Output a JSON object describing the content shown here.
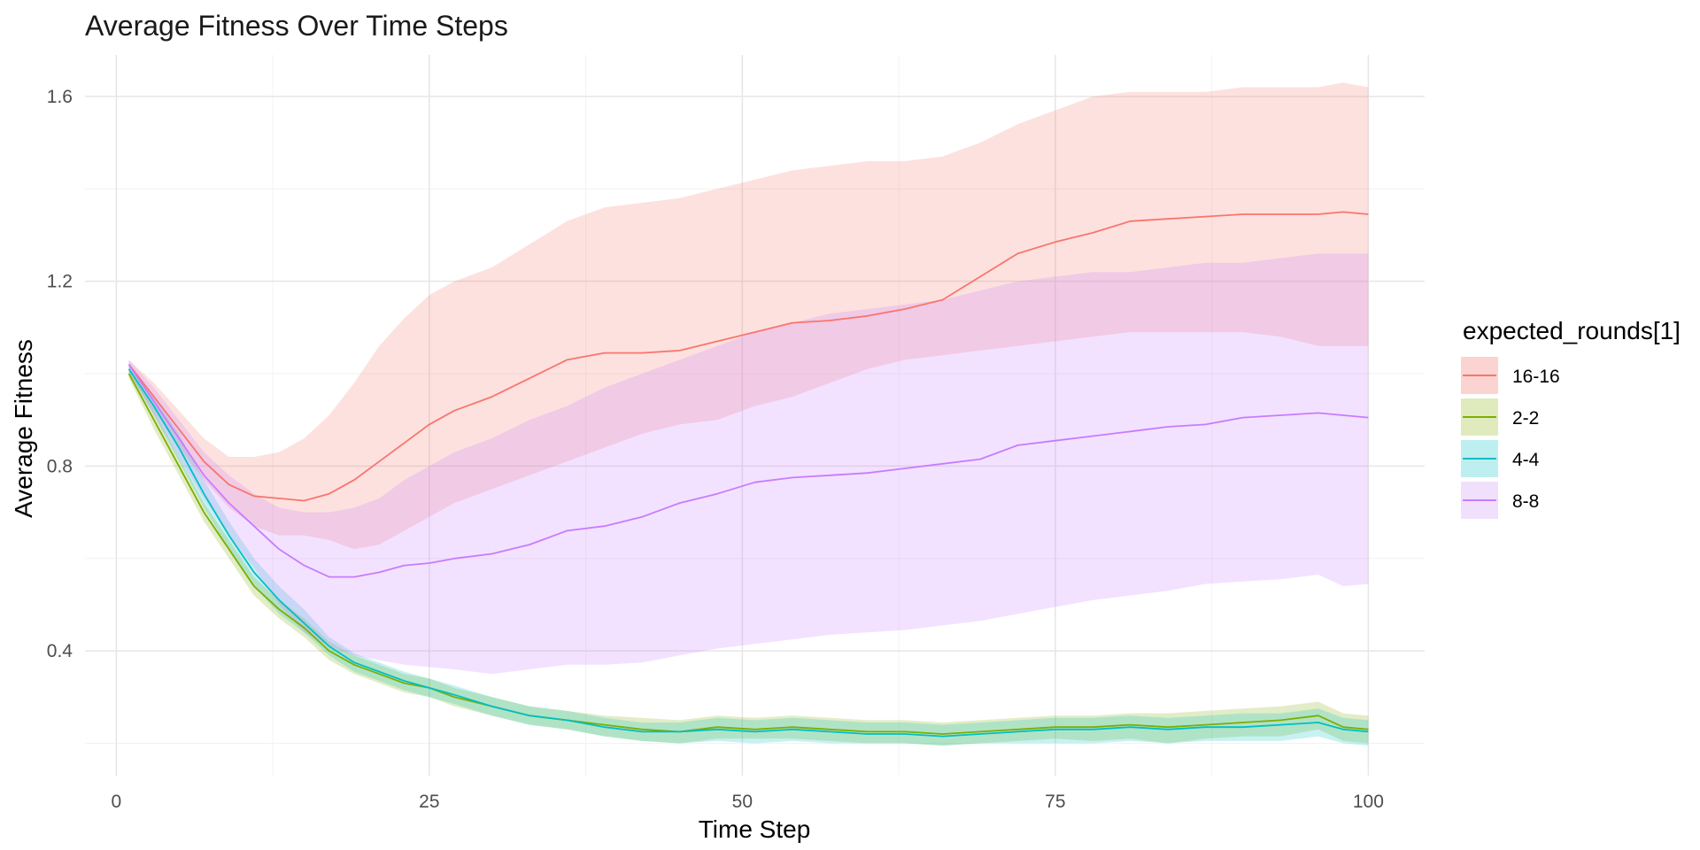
{
  "chart_data": {
    "type": "line",
    "title": "Average Fitness Over Time Steps",
    "xlabel": "Time Step",
    "ylabel": "Average Fitness",
    "xlim": [
      -2.5,
      104.5
    ],
    "ylim": [
      0.13,
      1.69
    ],
    "x_ticks": [
      0,
      25,
      50,
      75,
      100
    ],
    "x_tick_labels": [
      "0",
      "25",
      "50",
      "75",
      "100"
    ],
    "y_ticks": [
      0.4,
      0.8,
      1.2,
      1.6
    ],
    "y_tick_labels": [
      "0.4",
      "0.8",
      "1.2",
      "1.6"
    ],
    "grid": true,
    "legend": {
      "title": "expected_rounds[1]",
      "position": "right"
    },
    "band": "ribbon (shaded interval) around each series",
    "x_keys": [
      1,
      3,
      5,
      7,
      9,
      11,
      13,
      15,
      17,
      19,
      21,
      23,
      25,
      27,
      30,
      33,
      36,
      39,
      42,
      45,
      48,
      51,
      54,
      57,
      60,
      63,
      66,
      69,
      72,
      75,
      78,
      81,
      84,
      87,
      90,
      93,
      96,
      98,
      100
    ],
    "series": [
      {
        "name": "16-16",
        "line_color": "#F8766D",
        "fill_color": "#FBD3D1",
        "values": [
          1.02,
          0.95,
          0.88,
          0.81,
          0.76,
          0.735,
          0.73,
          0.725,
          0.74,
          0.77,
          0.81,
          0.85,
          0.89,
          0.92,
          0.95,
          0.99,
          1.03,
          1.045,
          1.045,
          1.05,
          1.07,
          1.09,
          1.11,
          1.115,
          1.125,
          1.14,
          1.16,
          1.21,
          1.26,
          1.285,
          1.305,
          1.33,
          1.335,
          1.34,
          1.345,
          1.345,
          1.345,
          1.35,
          1.345
        ],
        "lower": [
          1.0,
          0.92,
          0.84,
          0.77,
          0.71,
          0.67,
          0.65,
          0.65,
          0.64,
          0.62,
          0.63,
          0.66,
          0.69,
          0.72,
          0.75,
          0.78,
          0.81,
          0.84,
          0.87,
          0.89,
          0.9,
          0.93,
          0.95,
          0.98,
          1.01,
          1.03,
          1.04,
          1.05,
          1.06,
          1.07,
          1.08,
          1.09,
          1.09,
          1.09,
          1.09,
          1.08,
          1.06,
          1.06,
          1.06
        ],
        "upper": [
          1.03,
          0.98,
          0.92,
          0.86,
          0.82,
          0.82,
          0.83,
          0.86,
          0.91,
          0.98,
          1.06,
          1.12,
          1.17,
          1.2,
          1.23,
          1.28,
          1.33,
          1.36,
          1.37,
          1.38,
          1.4,
          1.42,
          1.44,
          1.45,
          1.46,
          1.46,
          1.47,
          1.5,
          1.54,
          1.57,
          1.6,
          1.61,
          1.61,
          1.61,
          1.62,
          1.62,
          1.62,
          1.63,
          1.62
        ]
      },
      {
        "name": "2-2",
        "line_color": "#7CAE00",
        "fill_color": "#DFEBBC",
        "values": [
          1.0,
          0.9,
          0.8,
          0.7,
          0.62,
          0.54,
          0.49,
          0.45,
          0.4,
          0.37,
          0.35,
          0.33,
          0.32,
          0.3,
          0.28,
          0.26,
          0.25,
          0.24,
          0.23,
          0.225,
          0.235,
          0.23,
          0.235,
          0.23,
          0.225,
          0.225,
          0.22,
          0.225,
          0.23,
          0.235,
          0.235,
          0.24,
          0.235,
          0.24,
          0.245,
          0.25,
          0.26,
          0.235,
          0.23
        ],
        "lower": [
          0.99,
          0.88,
          0.78,
          0.68,
          0.6,
          0.52,
          0.47,
          0.43,
          0.38,
          0.35,
          0.33,
          0.31,
          0.3,
          0.28,
          0.26,
          0.24,
          0.23,
          0.215,
          0.205,
          0.2,
          0.21,
          0.21,
          0.21,
          0.205,
          0.2,
          0.2,
          0.195,
          0.2,
          0.205,
          0.21,
          0.205,
          0.21,
          0.2,
          0.21,
          0.215,
          0.215,
          0.23,
          0.205,
          0.2
        ],
        "upper": [
          1.01,
          0.92,
          0.82,
          0.72,
          0.64,
          0.56,
          0.51,
          0.47,
          0.42,
          0.39,
          0.37,
          0.35,
          0.34,
          0.32,
          0.3,
          0.28,
          0.27,
          0.26,
          0.255,
          0.25,
          0.26,
          0.255,
          0.26,
          0.255,
          0.25,
          0.25,
          0.245,
          0.25,
          0.255,
          0.26,
          0.26,
          0.265,
          0.265,
          0.27,
          0.275,
          0.28,
          0.29,
          0.265,
          0.26
        ]
      },
      {
        "name": "4-4",
        "line_color": "#00BFC4",
        "fill_color": "#BDEFF0",
        "values": [
          1.01,
          0.93,
          0.84,
          0.74,
          0.65,
          0.57,
          0.51,
          0.46,
          0.41,
          0.375,
          0.355,
          0.335,
          0.32,
          0.305,
          0.28,
          0.26,
          0.25,
          0.235,
          0.225,
          0.225,
          0.23,
          0.225,
          0.23,
          0.225,
          0.22,
          0.22,
          0.215,
          0.22,
          0.225,
          0.23,
          0.23,
          0.235,
          0.23,
          0.235,
          0.235,
          0.24,
          0.245,
          0.23,
          0.225
        ],
        "lower": [
          1.0,
          0.91,
          0.81,
          0.71,
          0.62,
          0.54,
          0.48,
          0.44,
          0.39,
          0.355,
          0.335,
          0.315,
          0.3,
          0.285,
          0.26,
          0.24,
          0.23,
          0.215,
          0.205,
          0.2,
          0.205,
          0.2,
          0.205,
          0.2,
          0.2,
          0.2,
          0.195,
          0.2,
          0.2,
          0.2,
          0.2,
          0.205,
          0.2,
          0.205,
          0.205,
          0.205,
          0.215,
          0.2,
          0.195
        ],
        "upper": [
          1.02,
          0.95,
          0.87,
          0.77,
          0.68,
          0.6,
          0.54,
          0.49,
          0.43,
          0.395,
          0.375,
          0.355,
          0.34,
          0.325,
          0.3,
          0.28,
          0.27,
          0.255,
          0.245,
          0.245,
          0.255,
          0.25,
          0.255,
          0.25,
          0.245,
          0.245,
          0.24,
          0.245,
          0.25,
          0.255,
          0.255,
          0.26,
          0.255,
          0.26,
          0.265,
          0.265,
          0.275,
          0.255,
          0.25
        ]
      },
      {
        "name": "8-8",
        "line_color": "#C77CFF",
        "fill_color": "#F0E0FC",
        "values": [
          1.02,
          0.94,
          0.86,
          0.78,
          0.72,
          0.67,
          0.62,
          0.585,
          0.56,
          0.56,
          0.57,
          0.585,
          0.59,
          0.6,
          0.61,
          0.63,
          0.66,
          0.67,
          0.69,
          0.72,
          0.74,
          0.765,
          0.775,
          0.78,
          0.785,
          0.795,
          0.805,
          0.815,
          0.845,
          0.855,
          0.865,
          0.875,
          0.885,
          0.89,
          0.905,
          0.91,
          0.915,
          0.91,
          0.905
        ],
        "lower": [
          1.01,
          0.91,
          0.82,
          0.73,
          0.65,
          0.58,
          0.5,
          0.44,
          0.41,
          0.39,
          0.38,
          0.37,
          0.365,
          0.36,
          0.35,
          0.36,
          0.37,
          0.37,
          0.375,
          0.39,
          0.405,
          0.415,
          0.425,
          0.435,
          0.44,
          0.445,
          0.455,
          0.465,
          0.48,
          0.495,
          0.51,
          0.52,
          0.53,
          0.545,
          0.55,
          0.555,
          0.565,
          0.54,
          0.545
        ],
        "upper": [
          1.03,
          0.97,
          0.9,
          0.83,
          0.78,
          0.74,
          0.71,
          0.7,
          0.7,
          0.71,
          0.73,
          0.77,
          0.8,
          0.83,
          0.86,
          0.9,
          0.93,
          0.97,
          1.0,
          1.03,
          1.06,
          1.09,
          1.11,
          1.13,
          1.14,
          1.15,
          1.16,
          1.18,
          1.2,
          1.21,
          1.22,
          1.22,
          1.23,
          1.24,
          1.24,
          1.25,
          1.26,
          1.26,
          1.26
        ]
      }
    ]
  }
}
